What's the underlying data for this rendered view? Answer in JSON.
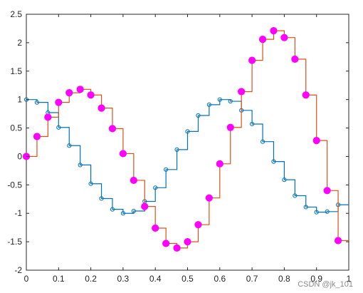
{
  "chart_data": {
    "type": "line",
    "title": "",
    "xlabel": "",
    "ylabel": "",
    "xlim": [
      0,
      1
    ],
    "ylim": [
      -2,
      2.5
    ],
    "xticks": [
      0,
      0.1,
      0.2,
      0.3,
      0.4,
      0.5,
      0.6,
      0.7,
      0.8,
      0.9,
      1
    ],
    "xtick_labels": [
      "0",
      "0.1",
      "0.2",
      "0.3",
      "0.4",
      "0.5",
      "0.6",
      "0.7",
      "0.8",
      "0.9",
      "1"
    ],
    "yticks": [
      -2,
      -1.5,
      -1,
      -0.5,
      0,
      0.5,
      1,
      1.5,
      2,
      2.5
    ],
    "ytick_labels": [
      "-2",
      "-1.5",
      "-1",
      "-0.5",
      "0",
      "0.5",
      "1",
      "1.5",
      "2",
      "2.5"
    ],
    "grid": false,
    "series": [
      {
        "style": "stairs with open circle markers",
        "color": "#0072BD",
        "x": [
          0,
          0.033,
          0.067,
          0.1,
          0.133,
          0.167,
          0.2,
          0.233,
          0.267,
          0.3,
          0.333,
          0.367,
          0.4,
          0.433,
          0.467,
          0.5,
          0.533,
          0.567,
          0.6,
          0.633,
          0.667,
          0.7,
          0.733,
          0.767,
          0.8,
          0.833,
          0.867,
          0.9,
          0.933,
          0.967,
          1.0
        ],
        "y": [
          1.0,
          0.95,
          0.77,
          0.51,
          0.19,
          -0.15,
          -0.48,
          -0.74,
          -0.93,
          -1.0,
          -0.96,
          -0.79,
          -0.55,
          -0.23,
          0.12,
          0.44,
          0.72,
          0.91,
          1.0,
          0.97,
          0.81,
          0.57,
          0.26,
          -0.09,
          -0.41,
          -0.69,
          -0.89,
          -0.98,
          -0.97,
          -0.85,
          null
        ]
      },
      {
        "style": "stairs with filled circle markers",
        "color": "#D95319",
        "marker_color": "#FF00FF",
        "x": [
          0,
          0.033,
          0.067,
          0.1,
          0.133,
          0.167,
          0.2,
          0.233,
          0.267,
          0.3,
          0.333,
          0.367,
          0.4,
          0.433,
          0.467,
          0.5,
          0.533,
          0.567,
          0.6,
          0.633,
          0.667,
          0.7,
          0.733,
          0.767,
          0.8,
          0.833,
          0.867,
          0.9,
          0.933,
          0.967,
          1.0
        ],
        "y": [
          0.0,
          0.35,
          0.69,
          0.95,
          1.12,
          1.18,
          1.08,
          0.85,
          0.49,
          0.05,
          -0.42,
          -0.88,
          -1.26,
          -1.53,
          -1.61,
          -1.5,
          -1.2,
          -0.73,
          -0.13,
          0.51,
          1.14,
          1.69,
          2.06,
          2.21,
          2.09,
          1.71,
          1.08,
          0.28,
          -0.6,
          -1.48,
          null
        ]
      }
    ]
  },
  "watermark": "CSDN @jk_101"
}
